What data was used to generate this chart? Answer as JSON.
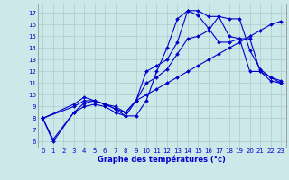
{
  "xlabel": "Graphe des températures (°c)",
  "background_color": "#cce8e8",
  "grid_color": "#aacccc",
  "line_color": "#0000cc",
  "xlim": [
    -0.5,
    23.5
  ],
  "ylim": [
    5.5,
    17.8
  ],
  "xticks": [
    0,
    1,
    2,
    3,
    4,
    5,
    6,
    7,
    8,
    9,
    10,
    11,
    12,
    13,
    14,
    15,
    16,
    17,
    18,
    19,
    20,
    21,
    22,
    23
  ],
  "yticks": [
    6,
    7,
    8,
    9,
    10,
    11,
    12,
    13,
    14,
    15,
    16,
    17
  ],
  "series": [
    {
      "comment": "line that goes 0=8,1=6, then up through 3-5~9, dips 6-9~8-9, rises steeply 10-14=17, then drops 15-23=11",
      "x": [
        0,
        1,
        3,
        4,
        5,
        6,
        7,
        8,
        9,
        10,
        11,
        12,
        13,
        14,
        15,
        16,
        17,
        18,
        19,
        20,
        21,
        22,
        23
      ],
      "y": [
        8,
        6,
        8.5,
        9,
        9.2,
        9,
        8.5,
        8.2,
        8.2,
        9.5,
        12,
        14,
        16.5,
        17.2,
        17.2,
        16.7,
        16.7,
        15,
        14.8,
        12,
        12,
        11.2,
        11
      ]
    },
    {
      "x": [
        0,
        1,
        3,
        4,
        5,
        6,
        7,
        8,
        9,
        10,
        11,
        12,
        13,
        14,
        15,
        16,
        17,
        18,
        19,
        20,
        21,
        22,
        23
      ],
      "y": [
        8,
        6.2,
        8.5,
        9.3,
        9.5,
        9.2,
        9,
        8.5,
        9.5,
        10,
        10.5,
        11,
        11.5,
        12,
        12.5,
        13,
        13.5,
        14,
        14.5,
        15,
        15.5,
        16,
        16.3
      ]
    },
    {
      "x": [
        0,
        3,
        4,
        5,
        6,
        7,
        8,
        9,
        10,
        11,
        12,
        13,
        14,
        15,
        16,
        17,
        18,
        19,
        20,
        21,
        22,
        23
      ],
      "y": [
        8,
        9.2,
        9.8,
        9.5,
        9.2,
        8.8,
        8.5,
        9.5,
        11,
        11.5,
        12.2,
        13.5,
        14.8,
        15,
        15.5,
        16.7,
        16.5,
        16.5,
        13.8,
        12.2,
        11.5,
        11.2
      ]
    },
    {
      "x": [
        0,
        3,
        4,
        5,
        6,
        7,
        8,
        9,
        10,
        11,
        12,
        13,
        14,
        15,
        16,
        17,
        18,
        19,
        20,
        21,
        22,
        23
      ],
      "y": [
        8,
        9,
        9.5,
        9.5,
        9.2,
        8.8,
        8.2,
        9.5,
        12,
        12.5,
        13,
        14.5,
        17.2,
        16.8,
        15.7,
        14.5,
        14.5,
        14.8,
        14.8,
        12,
        11.5,
        11
      ]
    }
  ]
}
